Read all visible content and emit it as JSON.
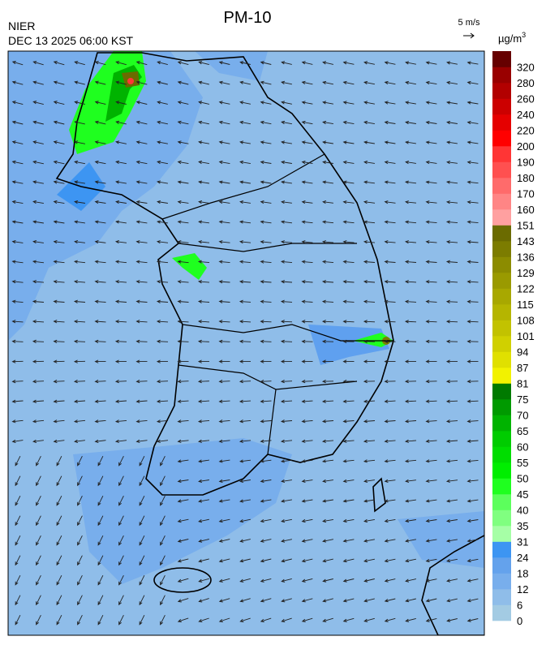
{
  "header": {
    "title": "PM-10",
    "agency": "NIER",
    "datetime": "DEC 13 2025 06:00 KST",
    "wind_scale": "5 m/s"
  },
  "legend": {
    "unit": "µg/m",
    "unit_sup": "3",
    "levels": [
      0,
      6,
      12,
      18,
      24,
      31,
      35,
      40,
      45,
      50,
      55,
      60,
      65,
      70,
      75,
      81,
      87,
      94,
      101,
      108,
      115,
      122,
      129,
      136,
      143,
      151,
      160,
      170,
      180,
      190,
      200,
      220,
      240,
      260,
      280,
      320
    ],
    "colors": [
      "#a3cbe3",
      "#8fbde9",
      "#78aeec",
      "#64a2ec",
      "#3d95f2",
      "#a6ffa6",
      "#80ff80",
      "#5cff5c",
      "#1fff1f",
      "#00ee00",
      "#00dd00",
      "#00cc00",
      "#00b300",
      "#009a00",
      "#007a00",
      "#f2f200",
      "#e0e000",
      "#d0d000",
      "#c2c200",
      "#b5b500",
      "#a8a800",
      "#9a9a00",
      "#8c8c00",
      "#7c7c00",
      "#6b6b00",
      "#ffa0a0",
      "#ff8585",
      "#ff6b6b",
      "#ff5050",
      "#ff3535",
      "#ff0000",
      "#e50000",
      "#cc0000",
      "#b20000",
      "#990000",
      "#660000"
    ]
  }
}
